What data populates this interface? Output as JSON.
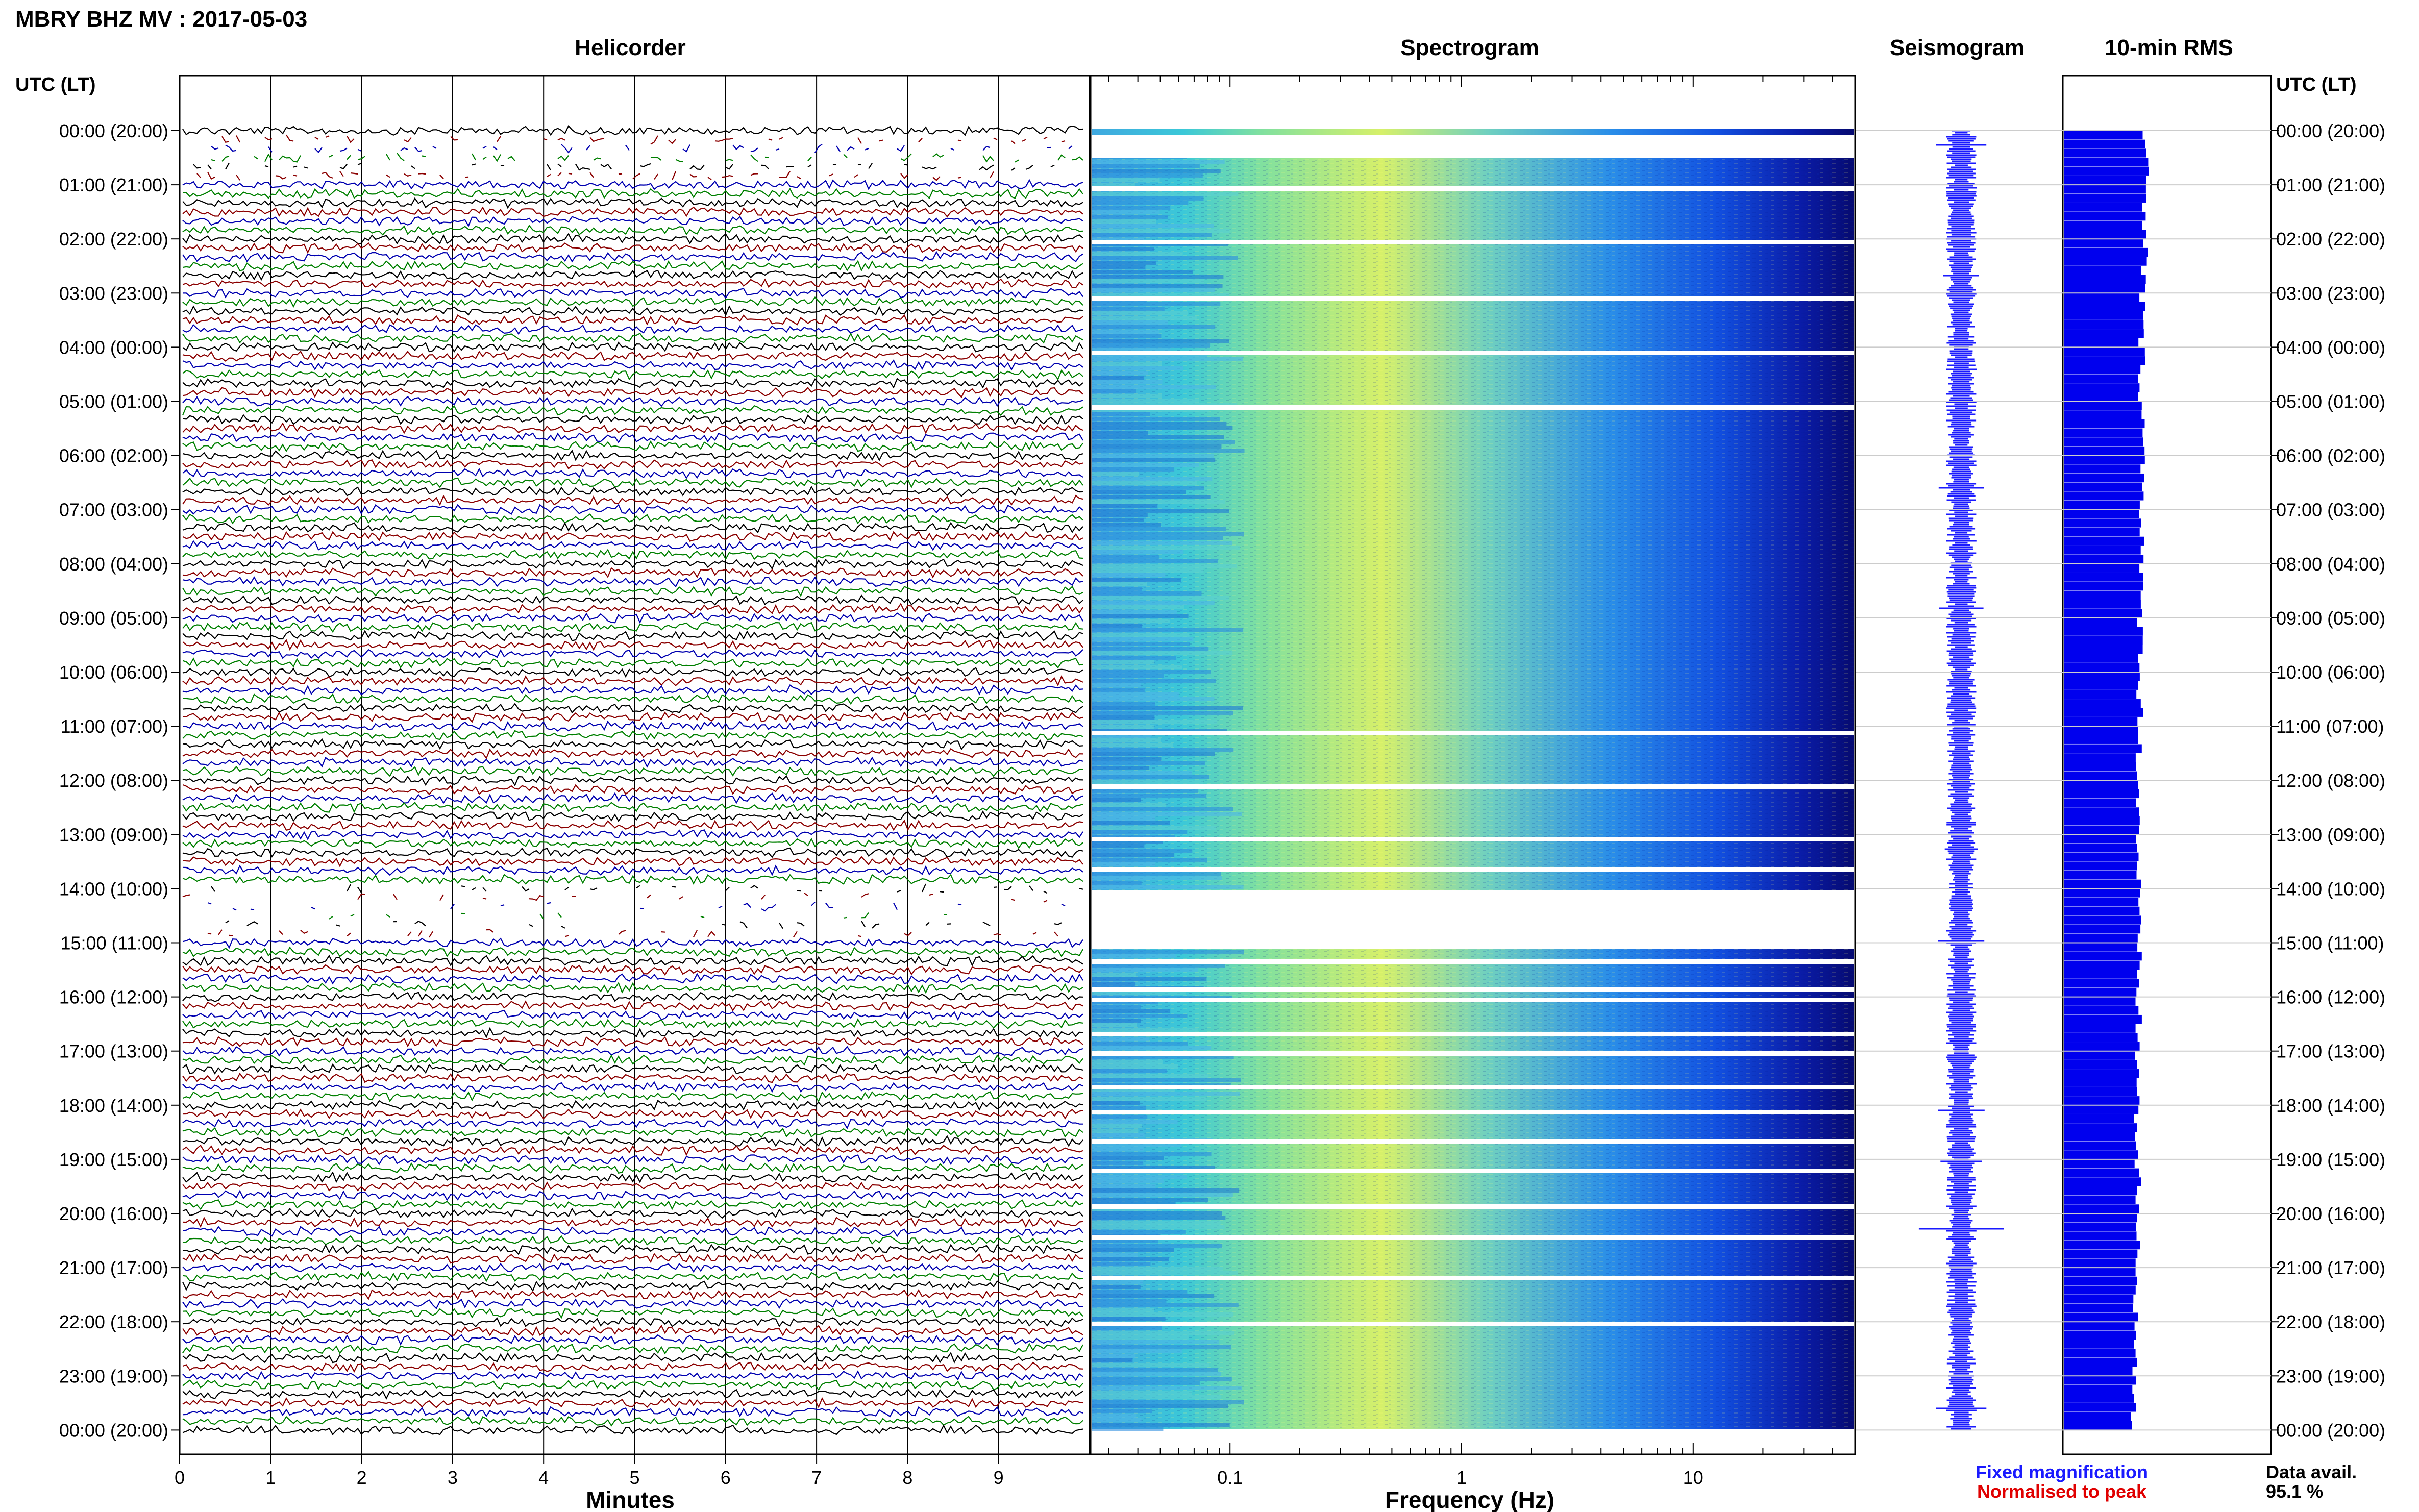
{
  "header": {
    "station_title": "MBRY BHZ MV : 2017-05-03",
    "utc_lt_label": "UTC (LT)"
  },
  "panels": {
    "helicorder_title": "Helicorder",
    "spectrogram_title": "Spectrogram",
    "seismogram_title": "Seismogram",
    "rms_title": "10-min RMS"
  },
  "footer": {
    "fixed_magnification": "Fixed magnification",
    "normalised_to_peak": "Normalised to peak",
    "data_avail_label": "Data avail.",
    "data_avail_value": "95.1 %"
  },
  "colors": {
    "helicorder_traces": [
      "#000000",
      "#8b0000",
      "#0000b0",
      "#008000"
    ],
    "fixed_magnification": "#1a1aff",
    "normalised_to_peak": "#e00000",
    "rms_bar": "#0000ee",
    "seismogram_trace": "#1a1aff",
    "grid": "#cccccc"
  },
  "chart_data": [
    {
      "type": "helicorder",
      "title": "Helicorder",
      "xlabel": "Minutes",
      "xticks": [
        "0",
        "1",
        "2",
        "3",
        "4",
        "5",
        "6",
        "7",
        "8",
        "9"
      ],
      "xlim": [
        0,
        10
      ],
      "lines_per_hour": 6,
      "hours": 24,
      "gap_hours_utc": [
        0,
        14
      ],
      "heavy_gap_hours_utc": [
        14
      ]
    },
    {
      "type": "heatmap",
      "title": "Spectrogram",
      "xlabel": "Frequency (Hz)",
      "x_scale": "log",
      "xlim": [
        0.025,
        50
      ],
      "xticks": [
        "0.1",
        "1",
        "10"
      ],
      "gap_hours_utc": [
        0,
        14
      ]
    },
    {
      "type": "line",
      "title": "Seismogram"
    },
    {
      "type": "bar",
      "title": "10-min RMS",
      "orientation": "horizontal",
      "categories": [
        "00:00",
        "01:00",
        "02:00",
        "03:00",
        "04:00",
        "05:00",
        "06:00",
        "07:00",
        "08:00",
        "09:00",
        "10:00",
        "11:00",
        "12:00",
        "13:00",
        "14:00",
        "15:00",
        "16:00",
        "17:00",
        "18:00",
        "19:00",
        "20:00",
        "21:00",
        "22:00",
        "23:00"
      ],
      "values_relative": [
        0.95,
        0.92,
        0.93,
        0.9,
        0.9,
        0.91,
        0.92,
        0.9,
        0.88,
        0.89,
        0.88,
        0.87,
        0.86,
        0.86,
        0.85,
        0.86,
        0.86,
        0.85,
        0.84,
        0.85,
        0.84,
        0.84,
        0.82,
        0.8
      ]
    }
  ],
  "time_axis": {
    "left_labels": [
      "00:00 (20:00)",
      "01:00 (21:00)",
      "02:00 (22:00)",
      "03:00 (23:00)",
      "04:00 (00:00)",
      "05:00 (01:00)",
      "06:00 (02:00)",
      "07:00 (03:00)",
      "08:00 (04:00)",
      "09:00 (05:00)",
      "10:00 (06:00)",
      "11:00 (07:00)",
      "12:00 (08:00)",
      "13:00 (09:00)",
      "14:00 (10:00)",
      "15:00 (11:00)",
      "16:00 (12:00)",
      "17:00 (13:00)",
      "18:00 (14:00)",
      "19:00 (15:00)",
      "20:00 (16:00)",
      "21:00 (17:00)",
      "22:00 (18:00)",
      "23:00 (19:00)",
      "00:00 (20:00)"
    ]
  }
}
